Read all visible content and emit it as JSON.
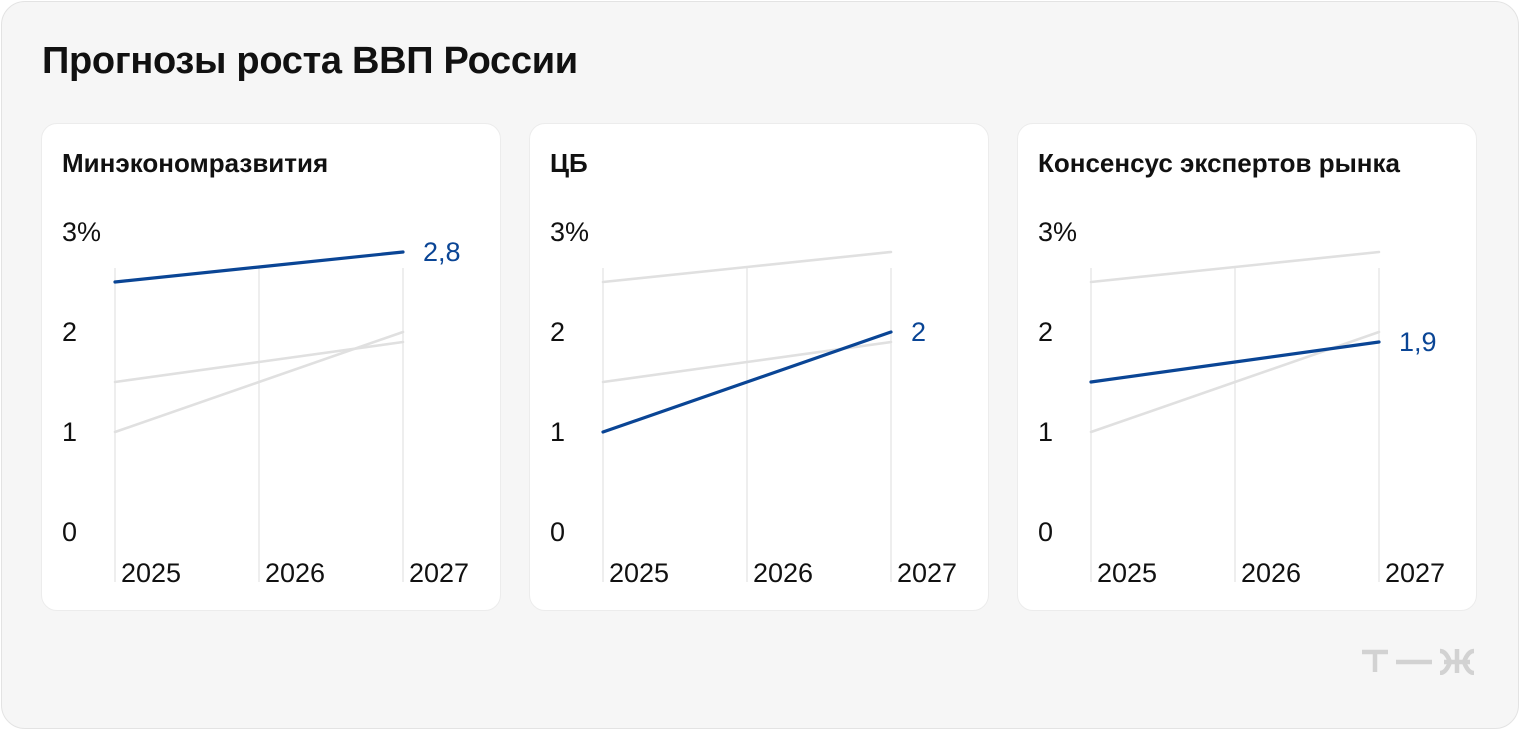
{
  "title": "Прогнозы роста ВВП России",
  "colors": {
    "highlight": "#0a4595",
    "other": "#e0e0e0",
    "grid": "#e3e3e3",
    "background": "#f6f6f6"
  },
  "logo": {
    "icon": "tzh-logo-icon",
    "text": "т—ж"
  },
  "chart_data": [
    {
      "type": "line",
      "title": "Минэкономразвития",
      "categories": [
        "2025",
        "2026",
        "2027"
      ],
      "y_ticks": [
        "0",
        "1",
        "2",
        "3%"
      ],
      "ylim": [
        0,
        3
      ],
      "highlight": 0,
      "end_label": "2,8",
      "series": [
        {
          "values": [
            2.5,
            2.65,
            2.8
          ]
        },
        {
          "values": [
            1.0,
            1.5,
            2.0
          ]
        },
        {
          "values": [
            1.5,
            1.7,
            1.9
          ]
        }
      ]
    },
    {
      "type": "line",
      "title": "ЦБ",
      "categories": [
        "2025",
        "2026",
        "2027"
      ],
      "y_ticks": [
        "0",
        "1",
        "2",
        "3%"
      ],
      "ylim": [
        0,
        3
      ],
      "highlight": 1,
      "end_label": "2",
      "series": [
        {
          "values": [
            2.5,
            2.65,
            2.8
          ]
        },
        {
          "values": [
            1.0,
            1.5,
            2.0
          ]
        },
        {
          "values": [
            1.5,
            1.7,
            1.9
          ]
        }
      ]
    },
    {
      "type": "line",
      "title": "Консенсус экспертов рынка",
      "categories": [
        "2025",
        "2026",
        "2027"
      ],
      "y_ticks": [
        "0",
        "1",
        "2",
        "3%"
      ],
      "ylim": [
        0,
        3
      ],
      "highlight": 2,
      "end_label": "1,9",
      "series": [
        {
          "values": [
            2.5,
            2.65,
            2.8
          ]
        },
        {
          "values": [
            1.0,
            1.5,
            2.0
          ]
        },
        {
          "values": [
            1.5,
            1.7,
            1.9
          ]
        }
      ]
    }
  ]
}
